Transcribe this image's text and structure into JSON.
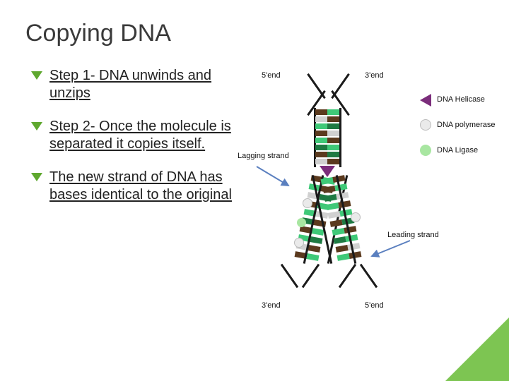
{
  "slide": {
    "title": "Copying DNA",
    "bullets": [
      "Step 1- DNA unwinds and unzips",
      "Step 2-  Once the molecule is separated  it copies itself.",
      "The new strand of DNA has bases identical to the original"
    ]
  },
  "diagram": {
    "labels": {
      "top_left": "5'end",
      "top_right": "3'end",
      "bottom_left": "3'end",
      "bottom_right": "5'end",
      "lagging": "Lagging strand",
      "leading": "Leading strand"
    },
    "legend": [
      {
        "label": "DNA Helicase",
        "color": "#7b2d7b",
        "shape": "triangle"
      },
      {
        "label": "DNA polymerase",
        "color": "#d9d9d9",
        "shape": "circle",
        "light": true
      },
      {
        "label": "DNA Ligase",
        "color": "#a8e6a1",
        "shape": "circle"
      }
    ],
    "colors": {
      "backbone": "#1a1a1a",
      "base_colors": [
        "#5b3a1e",
        "#3fc978",
        "#d0d0d0",
        "#1e7a42"
      ],
      "arrow": "#5a7fbf",
      "accent": "#6fbf3f"
    },
    "top_pairs": [
      [
        "#5b3a1e",
        "#3fc978"
      ],
      [
        "#d0d0d0",
        "#5b3a1e"
      ],
      [
        "#3fc978",
        "#1e7a42"
      ],
      [
        "#5b3a1e",
        "#d0d0d0"
      ],
      [
        "#3fc978",
        "#5b3a1e"
      ],
      [
        "#1e7a42",
        "#3fc978"
      ],
      [
        "#5b3a1e",
        "#1e7a42"
      ],
      [
        "#d0d0d0",
        "#5b3a1e"
      ]
    ],
    "left_fork": [
      [
        "#5b3a1e",
        "#3fc978"
      ],
      [
        "#3fc978",
        "#5b3a1e"
      ],
      [
        "#d0d0d0",
        "#1e7a42"
      ],
      [
        "#5b3a1e",
        "#3fc978"
      ],
      [
        "#3fc978",
        "#d0d0d0"
      ],
      [
        "#1e7a42",
        "#5b3a1e"
      ],
      [
        "#5b3a1e",
        "#3fc978"
      ],
      [
        "#3fc978",
        "#1e7a42"
      ],
      [
        "#d0d0d0",
        "#5b3a1e"
      ],
      [
        "#5b3a1e",
        "#3fc978"
      ]
    ],
    "right_fork": [
      [
        "#3fc978",
        "#5b3a1e"
      ],
      [
        "#5b3a1e",
        "#3fc978"
      ],
      [
        "#1e7a42",
        "#d0d0d0"
      ],
      [
        "#3fc978",
        "#5b3a1e"
      ],
      [
        "#d0d0d0",
        "#3fc978"
      ],
      [
        "#5b3a1e",
        "#1e7a42"
      ],
      [
        "#3fc978",
        "#5b3a1e"
      ],
      [
        "#1e7a42",
        "#3fc978"
      ],
      [
        "#5b3a1e",
        "#d0d0d0"
      ],
      [
        "#3fc978",
        "#5b3a1e"
      ]
    ]
  }
}
